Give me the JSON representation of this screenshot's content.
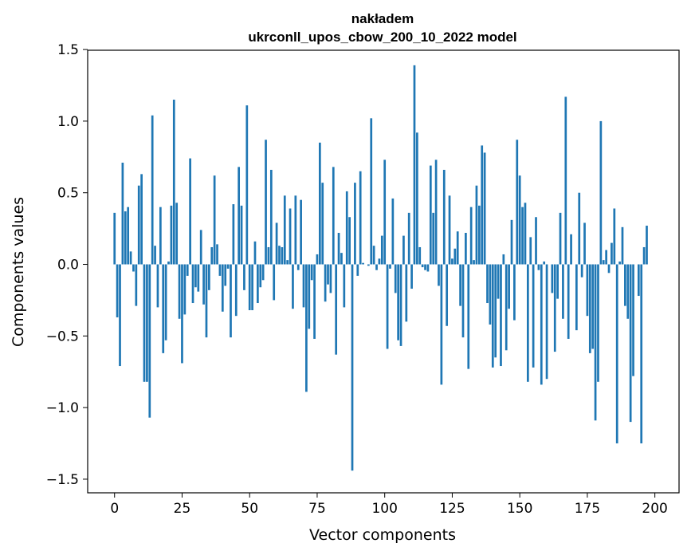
{
  "chart_data": {
    "type": "bar",
    "title_line1": "nakładem",
    "title_line2": "ukrconll_upos_cbow_200_10_2022 model",
    "xlabel": "Vector components",
    "ylabel": "Components values",
    "xlim": [
      -9.95,
      208.95
    ],
    "ylim": [
      -1.595,
      1.495
    ],
    "x_ticks": [
      0,
      25,
      50,
      75,
      100,
      125,
      150,
      175,
      200
    ],
    "x_tick_labels": [
      "0",
      "25",
      "50",
      "75",
      "100",
      "125",
      "150",
      "175",
      "200"
    ],
    "y_ticks": [
      1.5,
      1.0,
      0.5,
      0.0,
      -0.5,
      -1.0,
      -1.5
    ],
    "y_tick_labels": [
      "1.5",
      "1.0",
      "0.5",
      "0.0",
      "−0.5",
      "−1.0",
      "−1.5"
    ],
    "bar_color": "#1f77b4",
    "grid": false,
    "values": [
      0.36,
      -0.37,
      -0.71,
      0.71,
      0.37,
      0.4,
      0.09,
      -0.05,
      -0.29,
      0.55,
      0.63,
      -0.82,
      -0.82,
      -1.07,
      1.04,
      0.13,
      -0.3,
      0.4,
      -0.62,
      -0.53,
      0.02,
      0.41,
      1.15,
      0.43,
      -0.38,
      -0.69,
      -0.35,
      -0.08,
      0.74,
      -0.27,
      -0.16,
      -0.19,
      0.24,
      -0.28,
      -0.51,
      -0.18,
      0.12,
      0.62,
      0.14,
      -0.08,
      -0.33,
      -0.15,
      -0.03,
      -0.51,
      0.42,
      -0.36,
      0.68,
      0.41,
      -0.18,
      1.11,
      -0.32,
      -0.32,
      0.16,
      -0.27,
      -0.16,
      -0.11,
      0.87,
      0.12,
      0.66,
      -0.25,
      0.29,
      0.13,
      0.12,
      0.48,
      0.03,
      0.39,
      -0.31,
      0.48,
      -0.04,
      0.45,
      -0.3,
      -0.89,
      -0.45,
      -0.11,
      -0.52,
      0.07,
      0.85,
      0.57,
      -0.26,
      -0.14,
      -0.2,
      0.68,
      -0.63,
      0.22,
      0.08,
      -0.3,
      0.51,
      0.33,
      -1.44,
      0.57,
      -0.08,
      0.65,
      0.01,
      0.0,
      -0.01,
      1.02,
      0.13,
      -0.04,
      0.04,
      0.2,
      0.73,
      -0.59,
      -0.03,
      0.46,
      -0.2,
      -0.53,
      -0.57,
      0.2,
      -0.4,
      0.36,
      -0.17,
      1.39,
      0.92,
      0.12,
      -0.02,
      -0.04,
      -0.05,
      0.69,
      0.36,
      0.73,
      -0.15,
      -0.84,
      0.66,
      -0.43,
      0.48,
      0.04,
      0.11,
      0.23,
      -0.29,
      -0.51,
      0.22,
      -0.73,
      0.4,
      0.03,
      0.55,
      0.41,
      0.83,
      0.78,
      -0.27,
      -0.42,
      -0.72,
      -0.65,
      -0.24,
      -0.71,
      0.07,
      -0.6,
      -0.31,
      0.31,
      -0.39,
      0.87,
      0.62,
      0.4,
      0.43,
      -0.82,
      0.19,
      -0.72,
      0.33,
      -0.04,
      -0.84,
      0.02,
      -0.8,
      0.0,
      -0.2,
      -0.61,
      -0.24,
      0.36,
      -0.38,
      1.17,
      -0.52,
      0.21,
      0.0,
      -0.46,
      0.5,
      -0.09,
      0.29,
      -0.36,
      -0.62,
      -0.59,
      -1.09,
      -0.82,
      1.0,
      0.03,
      0.1,
      -0.06,
      0.15,
      0.39,
      -1.25,
      0.02,
      0.26,
      -0.29,
      -0.38,
      -1.1,
      -0.78,
      0.0,
      -0.22,
      -1.25,
      0.12,
      0.27
    ]
  }
}
